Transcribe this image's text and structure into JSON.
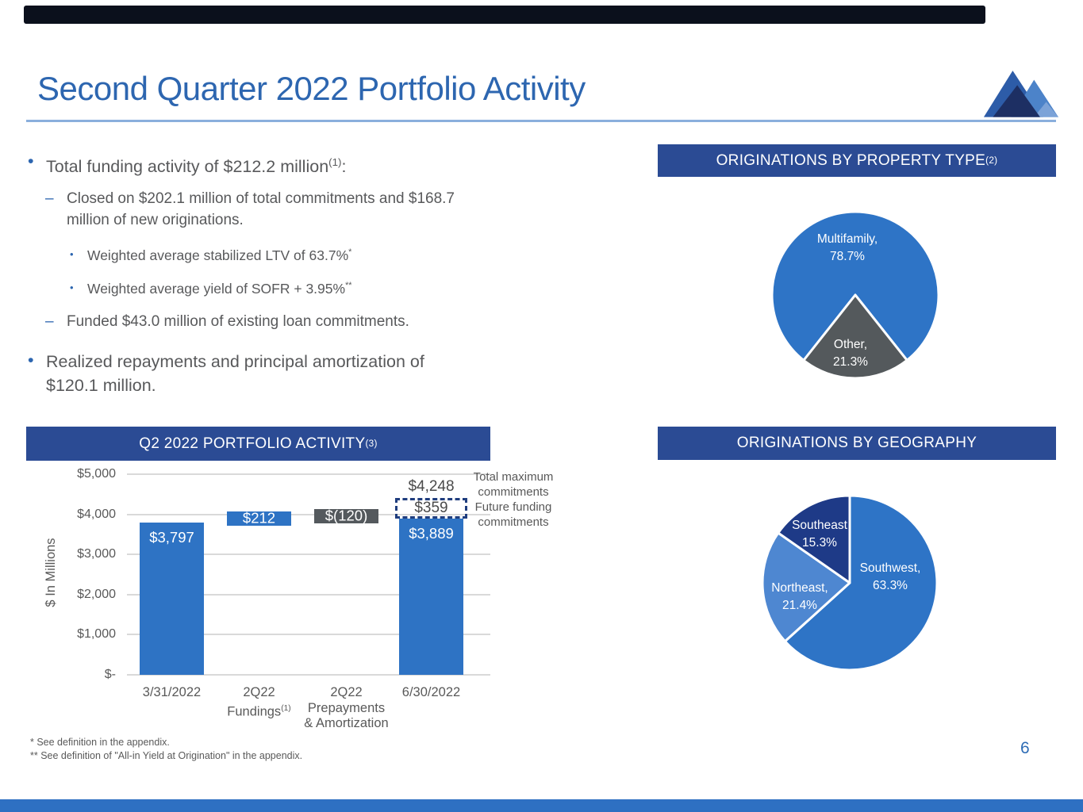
{
  "page": {
    "title": "Second Quarter 2022 Portfolio Activity",
    "page_number": "6"
  },
  "bullets": {
    "b1_text": "Total funding activity of $212.2 million",
    "b1_sup": "(1)",
    "b1_tail": ":",
    "b1a_line1": "Closed on $202.1 million of total commitments and $168.7",
    "b1a_line2": "million of new originations.",
    "b1a1_text": "Weighted average stabilized LTV of 63.7%",
    "b1a1_sup": "*",
    "b1a2_text": "Weighted average yield of SOFR + 3.95%",
    "b1a2_sup": "**",
    "b1b_text": "Funded $43.0 million of existing loan commitments.",
    "b2_line1": "Realized repayments and principal amortization of",
    "b2_line2": "$120.1 million.",
    "bullet_glyph": "•",
    "dash_glyph": "–"
  },
  "footnotes": [
    "* See definition in the appendix.",
    "** See definition of \"All-in Yield at Origination\" in the appendix."
  ],
  "colors": {
    "banner_navy": "#2b4b94",
    "bar_blue": "#2e73c4",
    "bar_gray": "#54595d",
    "pie_blue": "#2e74c6",
    "pie_light_blue": "#4e87d1",
    "pie_dark_navy": "#1e3a87",
    "title_blue": "#2d66b0",
    "accent_rule": "#8aafdd",
    "dashed_border": "#1f3d7e",
    "bottom_strip": "#2e70c2",
    "top_strip": "#0b101c"
  },
  "chart_data": [
    {
      "type": "bar",
      "title": "Q2 2022 PORTFOLIO ACTIVITY",
      "title_sup": "(3)",
      "ylabel": "$ In Millions",
      "ylim": [
        0,
        5000
      ],
      "grid": true,
      "ytick_values": [
        5000,
        4000,
        3000,
        2000,
        1000,
        0
      ],
      "ytick_labels": [
        "$5,000",
        "$4,000",
        "$3,000",
        "$2,000",
        "$1,000",
        "$-"
      ],
      "bars": [
        {
          "category_lines": [
            "3/31/2022"
          ],
          "label": "$3,797",
          "value": 3797,
          "kind": "total",
          "color": "#2e73c4"
        },
        {
          "category_lines": [
            "2Q22",
            "Fundings"
          ],
          "category_sup": "(1)",
          "label": "$212",
          "value": 212,
          "base": 3797,
          "kind": "delta",
          "color": "#2e73c4"
        },
        {
          "category_lines": [
            "2Q22",
            "Prepayments",
            "& Amortization"
          ],
          "label": "$(120)",
          "value": -120,
          "base": 4009,
          "kind": "delta",
          "color": "#54595d"
        },
        {
          "category_lines": [
            "6/30/2022"
          ],
          "label": "$3,889",
          "value": 3889,
          "kind": "total",
          "color": "#2e73c4"
        }
      ],
      "future_funding": {
        "label": "$359",
        "value": 359,
        "total_label": "$4,248",
        "total": 4248,
        "on_bar_index": 3
      },
      "annotations": [
        "Total maximum commitments",
        "Future funding commitments"
      ]
    },
    {
      "type": "pie",
      "title": "ORIGINATIONS BY PROPERTY TYPE",
      "title_sup": "(2)",
      "start_angle": -141.7,
      "slices": [
        {
          "name": "multifamily",
          "label": "Multifamily,",
          "pct": 78.7,
          "pct_label": "78.7%",
          "color": "#2e74c6"
        },
        {
          "name": "other",
          "label": "Other,",
          "pct": 21.3,
          "pct_label": "21.3%",
          "color": "#54595c"
        }
      ]
    },
    {
      "type": "pie",
      "title": "ORIGINATIONS BY GEOGRAPHY",
      "title_sup": "",
      "start_angle": 0,
      "slices": [
        {
          "name": "southwest",
          "label": "Southwest,",
          "pct": 63.3,
          "pct_label": "63.3%",
          "color": "#2e74c6"
        },
        {
          "name": "northeast",
          "label": "Northeast,",
          "pct": 21.4,
          "pct_label": "21.4%",
          "color": "#4e87d1"
        },
        {
          "name": "southeast",
          "label": "Southeast",
          "pct": 15.3,
          "pct_label": "15.3%",
          "color": "#1e3a87"
        }
      ]
    }
  ]
}
